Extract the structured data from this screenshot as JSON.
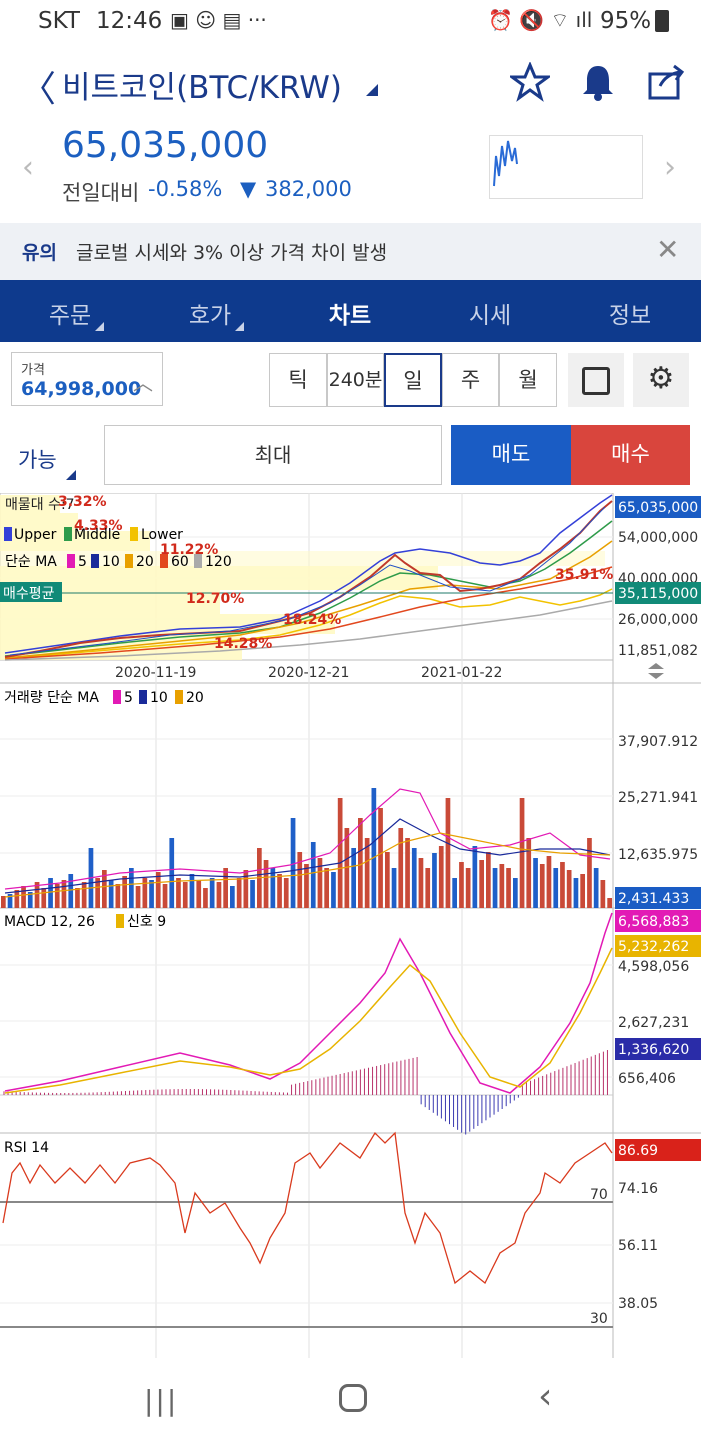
{
  "status": {
    "carrier": "SKT",
    "time": "12:46",
    "battery": "95%"
  },
  "header": {
    "title": "비트코인(BTC/KRW)"
  },
  "ticker": {
    "price": "65,035,000",
    "change_label": "전일대비",
    "change_pct": "-0.58%",
    "change_abs": "382,000"
  },
  "notice": {
    "tag": "유의",
    "text": "글로벌 시세와 3% 이상 가격 차이 발생"
  },
  "tabs": [
    "주문",
    "호가",
    "차트",
    "시세",
    "정보"
  ],
  "controls": {
    "price_label": "가격",
    "price_value": "64,998,000",
    "intervals": [
      "틱",
      "240분",
      "일",
      "주",
      "월"
    ],
    "available": "가능",
    "max": "최대",
    "sell": "매도",
    "buy": "매수"
  },
  "chart_data": [
    {
      "type": "line",
      "title": "",
      "legend1": [
        "Upper",
        "Middle",
        "Lower"
      ],
      "legend2": [
        "단순 MA",
        "5",
        "10",
        "20",
        "60",
        "120"
      ],
      "volume_profile_label": "매물대 수:7",
      "volume_profile_pcts": [
        "3.32%",
        "4.33%",
        "11.22%",
        "12.70%",
        "18.24%",
        "14.28%",
        "35.91%"
      ],
      "avg_buy_label": "매수평균",
      "x_ticks": [
        "2020-11-19",
        "2020-12-21",
        "2021-01-22"
      ],
      "y_ticks": [
        "54,000,000",
        "40,000,000",
        "26,000,000",
        "11,851,082"
      ],
      "current_price": "65,035,000",
      "avg_price": "35,115,000"
    },
    {
      "type": "bar",
      "title": "",
      "legend": [
        "거래량 단순 MA",
        "5",
        "10",
        "20"
      ],
      "y_ticks": [
        "37,907.912",
        "25,271.941",
        "12,635.975"
      ],
      "current": "2,431.433"
    },
    {
      "type": "line",
      "title": "",
      "legend": [
        "MACD 12, 26",
        "신호 9"
      ],
      "y_ticks": [
        "4,598,056",
        "2,627,231",
        "656,406"
      ],
      "macd": "6,568,883",
      "signal": "5,232,262",
      "hist": "1,336,620"
    },
    {
      "type": "line",
      "title": "",
      "legend": [
        "RSI 14"
      ],
      "y_ticks": [
        "74.16",
        "56.11",
        "38.05"
      ],
      "levels": [
        "70",
        "30"
      ],
      "current": "86.69"
    }
  ],
  "colors": {
    "brand": "#0e3a8d",
    "sell": "#1a5cc4",
    "buy": "#d9453d"
  }
}
